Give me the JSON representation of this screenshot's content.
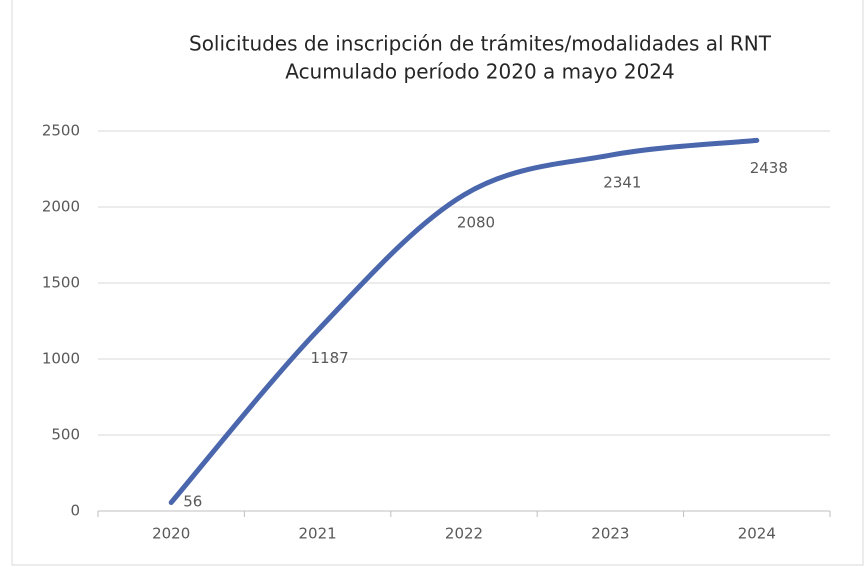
{
  "chart_data": {
    "type": "line",
    "title": "Solicitudes de inscripción de trámites/modalidades al RNT",
    "subtitle": "Acumulado período 2020 a mayo 2024",
    "categories": [
      "2020",
      "2021",
      "2022",
      "2023",
      "2024"
    ],
    "series": [
      {
        "name": "Solicitudes",
        "color": "#4a66ac",
        "values": [
          56,
          1187,
          2080,
          2341,
          2438
        ]
      }
    ],
    "ylim": [
      0,
      2500
    ],
    "yticks": [
      0,
      500,
      1000,
      1500,
      2000,
      2500
    ],
    "grid": true
  }
}
